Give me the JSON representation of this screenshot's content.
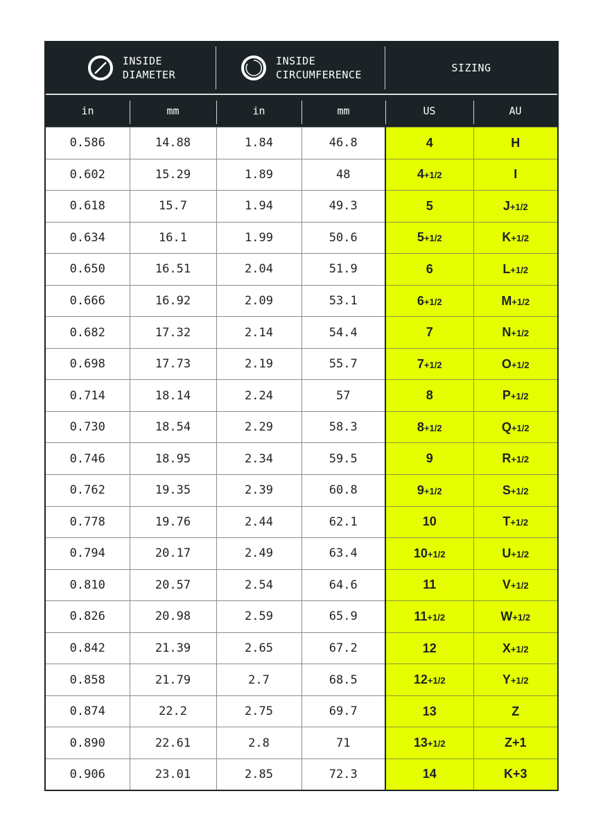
{
  "colors": {
    "header_bg": "#1b2327",
    "sizing_bg": "#e5ff00"
  },
  "header": {
    "groups": [
      {
        "icon": "diameter-ring-icon",
        "line1": "INSIDE",
        "line2": "DIAMETER"
      },
      {
        "icon": "circumference-ring-icon",
        "line1": "INSIDE",
        "line2": "CIRCUMFERENCE"
      },
      {
        "label": "SIZING"
      }
    ],
    "columns": [
      "in",
      "mm",
      "in",
      "mm",
      "US",
      "AU"
    ]
  },
  "rows": [
    {
      "d_in": "0.586",
      "d_mm": "14.88",
      "c_in": "1.84",
      "c_mm": "46.8",
      "us": "4",
      "us_frac": "",
      "au": "H",
      "au_frac": ""
    },
    {
      "d_in": "0.602",
      "d_mm": "15.29",
      "c_in": "1.89",
      "c_mm": "48",
      "us": "4",
      "us_frac": "+1/2",
      "au": "I",
      "au_frac": ""
    },
    {
      "d_in": "0.618",
      "d_mm": "15.7",
      "c_in": "1.94",
      "c_mm": "49.3",
      "us": "5",
      "us_frac": "",
      "au": "J",
      "au_frac": "+1/2"
    },
    {
      "d_in": "0.634",
      "d_mm": "16.1",
      "c_in": "1.99",
      "c_mm": "50.6",
      "us": "5",
      "us_frac": "+1/2",
      "au": "K",
      "au_frac": "+1/2"
    },
    {
      "d_in": "0.650",
      "d_mm": "16.51",
      "c_in": "2.04",
      "c_mm": "51.9",
      "us": "6",
      "us_frac": "",
      "au": "L",
      "au_frac": "+1/2"
    },
    {
      "d_in": "0.666",
      "d_mm": "16.92",
      "c_in": "2.09",
      "c_mm": "53.1",
      "us": "6",
      "us_frac": "+1/2",
      "au": "M",
      "au_frac": "+1/2"
    },
    {
      "d_in": "0.682",
      "d_mm": "17.32",
      "c_in": "2.14",
      "c_mm": "54.4",
      "us": "7",
      "us_frac": "",
      "au": "N",
      "au_frac": "+1/2"
    },
    {
      "d_in": "0.698",
      "d_mm": "17.73",
      "c_in": "2.19",
      "c_mm": "55.7",
      "us": "7",
      "us_frac": "+1/2",
      "au": "O",
      "au_frac": "+1/2"
    },
    {
      "d_in": "0.714",
      "d_mm": "18.14",
      "c_in": "2.24",
      "c_mm": "57",
      "us": "8",
      "us_frac": "",
      "au": "P",
      "au_frac": "+1/2"
    },
    {
      "d_in": "0.730",
      "d_mm": "18.54",
      "c_in": "2.29",
      "c_mm": "58.3",
      "us": "8",
      "us_frac": "+1/2",
      "au": "Q",
      "au_frac": "+1/2"
    },
    {
      "d_in": "0.746",
      "d_mm": "18.95",
      "c_in": "2.34",
      "c_mm": "59.5",
      "us": "9",
      "us_frac": "",
      "au": "R",
      "au_frac": "+1/2"
    },
    {
      "d_in": "0.762",
      "d_mm": "19.35",
      "c_in": "2.39",
      "c_mm": "60.8",
      "us": "9",
      "us_frac": "+1/2",
      "au": "S",
      "au_frac": "+1/2"
    },
    {
      "d_in": "0.778",
      "d_mm": "19.76",
      "c_in": "2.44",
      "c_mm": "62.1",
      "us": "10",
      "us_frac": "",
      "au": "T",
      "au_frac": "+1/2"
    },
    {
      "d_in": "0.794",
      "d_mm": "20.17",
      "c_in": "2.49",
      "c_mm": "63.4",
      "us": "10",
      "us_frac": "+1/2",
      "au": "U",
      "au_frac": "+1/2"
    },
    {
      "d_in": "0.810",
      "d_mm": "20.57",
      "c_in": "2.54",
      "c_mm": "64.6",
      "us": "11",
      "us_frac": "",
      "au": "V",
      "au_frac": "+1/2"
    },
    {
      "d_in": "0.826",
      "d_mm": "20.98",
      "c_in": "2.59",
      "c_mm": "65.9",
      "us": "11",
      "us_frac": "+1/2",
      "au": "W",
      "au_frac": "+1/2"
    },
    {
      "d_in": "0.842",
      "d_mm": "21.39",
      "c_in": "2.65",
      "c_mm": "67.2",
      "us": "12",
      "us_frac": "",
      "au": "X",
      "au_frac": "+1/2"
    },
    {
      "d_in": "0.858",
      "d_mm": "21.79",
      "c_in": "2.7",
      "c_mm": "68.5",
      "us": "12",
      "us_frac": "+1/2",
      "au": "Y",
      "au_frac": "+1/2"
    },
    {
      "d_in": "0.874",
      "d_mm": "22.2",
      "c_in": "2.75",
      "c_mm": "69.7",
      "us": "13",
      "us_frac": "",
      "au": "Z",
      "au_frac": ""
    },
    {
      "d_in": "0.890",
      "d_mm": "22.61",
      "c_in": "2.8",
      "c_mm": "71",
      "us": "13",
      "us_frac": "+1/2",
      "au": "Z+1",
      "au_frac": ""
    },
    {
      "d_in": "0.906",
      "d_mm": "23.01",
      "c_in": "2.85",
      "c_mm": "72.3",
      "us": "14",
      "us_frac": "",
      "au": "K+3",
      "au_frac": ""
    }
  ]
}
